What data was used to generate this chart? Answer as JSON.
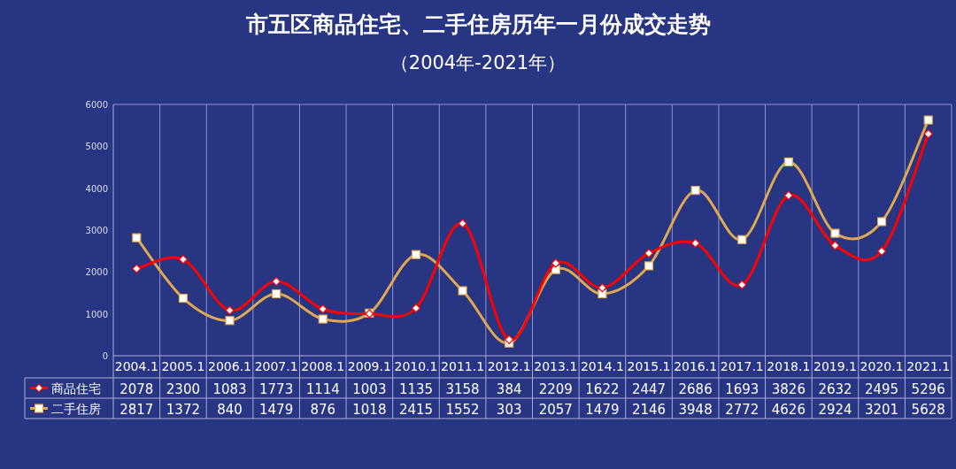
{
  "chart_data": {
    "type": "line",
    "title": "市五区商品住宅、二手住房历年一月份成交走势",
    "subtitle": "（2004年-2021年）",
    "categories": [
      "2004.1",
      "2005.1",
      "2006.1",
      "2007.1",
      "2008.1",
      "2009.1",
      "2010.1",
      "2011.1",
      "2012.1",
      "2013.1",
      "2014.1",
      "2015.1",
      "2016.1",
      "2017.1",
      "2018.1",
      "2019.1",
      "2020.1",
      "2021.1"
    ],
    "series": [
      {
        "name": "商品住宅",
        "color": "#ff0000",
        "marker": "diamond",
        "values": [
          2078,
          2300,
          1083,
          1773,
          1114,
          1003,
          1135,
          3158,
          384,
          2209,
          1622,
          2447,
          2686,
          1693,
          3826,
          2632,
          2495,
          5296
        ]
      },
      {
        "name": "二手住房",
        "color": "#e0a850",
        "marker": "square",
        "values": [
          2817,
          1372,
          840,
          1479,
          876,
          1018,
          2415,
          1552,
          303,
          2057,
          1479,
          2146,
          3948,
          2772,
          4626,
          2924,
          3201,
          5628
        ]
      }
    ],
    "ylim": [
      0,
      6000
    ],
    "yticks": [
      0,
      1000,
      2000,
      3000,
      4000,
      5000,
      6000
    ],
    "grid": "x",
    "legend": "bottom",
    "data_labels": true
  }
}
